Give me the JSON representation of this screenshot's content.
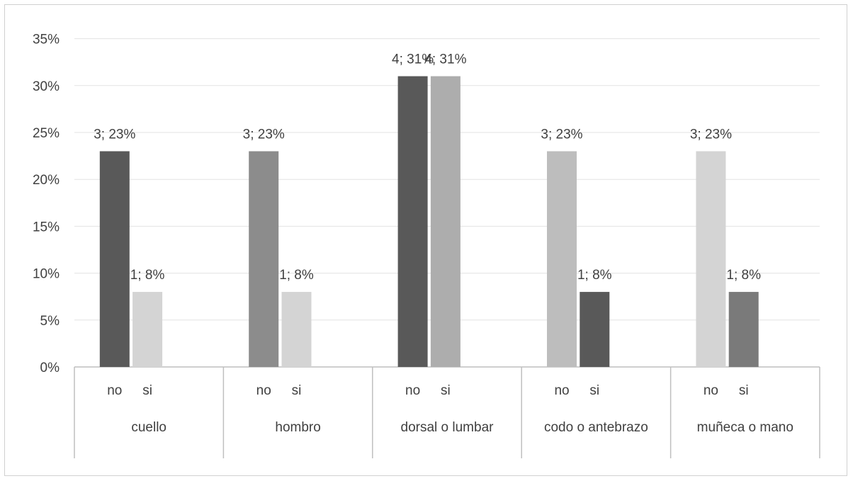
{
  "chart_data": {
    "type": "bar",
    "y_ticks": [
      "0%",
      "5%",
      "10%",
      "15%",
      "20%",
      "25%",
      "30%",
      "35%"
    ],
    "ylim": [
      0,
      35
    ],
    "grid": true,
    "groups": [
      {
        "label": "cuello",
        "bars": [
          {
            "category": "no",
            "value": 23,
            "data_label": "3; 23%",
            "color": "#595959"
          },
          {
            "category": "si",
            "value": 8,
            "data_label": "1; 8%",
            "color": "#d4d4d4"
          }
        ]
      },
      {
        "label": "hombro",
        "bars": [
          {
            "category": "no",
            "value": 23,
            "data_label": "3; 23%",
            "color": "#8c8c8c"
          },
          {
            "category": "si",
            "value": 8,
            "data_label": "1; 8%",
            "color": "#d4d4d4"
          }
        ]
      },
      {
        "label": "dorsal o lumbar",
        "bars": [
          {
            "category": "no",
            "value": 31,
            "data_label": "4; 31%",
            "color": "#595959"
          },
          {
            "category": "si",
            "value": 31,
            "data_label": "4; 31%",
            "color": "#adadad"
          }
        ]
      },
      {
        "label": "codo o antebrazo",
        "bars": [
          {
            "category": "no",
            "value": 23,
            "data_label": "3; 23%",
            "color": "#bdbdbd"
          },
          {
            "category": "si",
            "value": 8,
            "data_label": "1; 8%",
            "color": "#595959"
          }
        ]
      },
      {
        "label": "muñeca o mano",
        "bars": [
          {
            "category": "no",
            "value": 23,
            "data_label": "3; 23%",
            "color": "#d4d4d4"
          },
          {
            "category": "si",
            "value": 8,
            "data_label": "1; 8%",
            "color": "#7a7a7a"
          }
        ]
      }
    ]
  }
}
